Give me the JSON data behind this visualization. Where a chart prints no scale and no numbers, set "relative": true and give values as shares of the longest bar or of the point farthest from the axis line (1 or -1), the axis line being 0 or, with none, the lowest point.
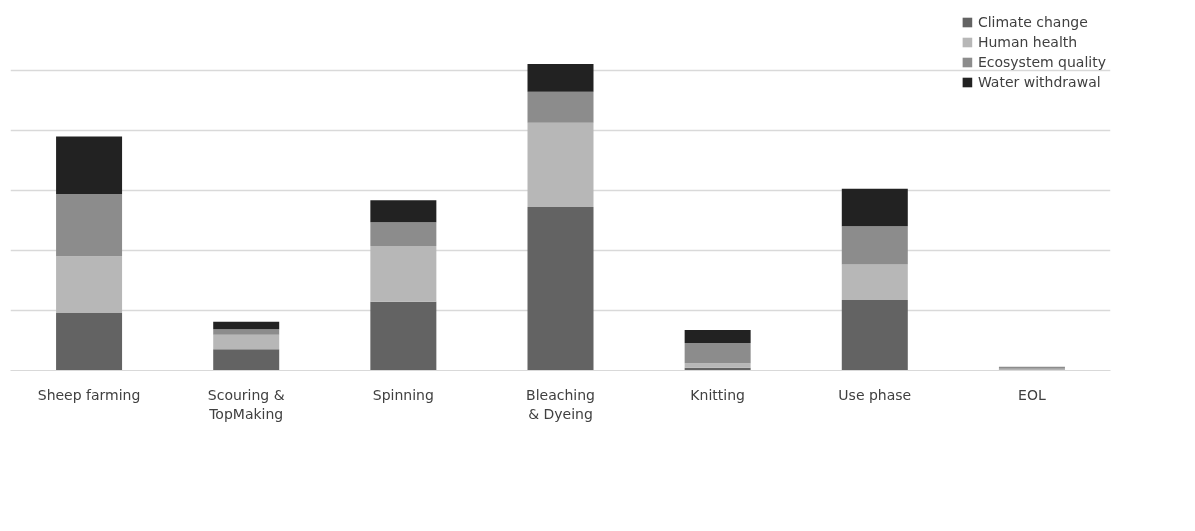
{
  "chart_data": {
    "type": "bar",
    "stacked": true,
    "relative": true,
    "grid": "y",
    "legend": "top right",
    "categories": [
      "Sheep farming",
      "Scouring & TopMaking",
      "Spinning",
      "Bleaching & Dyeing",
      "Knitting",
      "Use phase",
      "EOL"
    ],
    "series": [
      {
        "name": "Climate change",
        "color": "#636363",
        "values": [
          0.188,
          0.069,
          0.224,
          0.534,
          0.009,
          0.23,
          0.003
        ]
      },
      {
        "name": "Human health",
        "color": "#b7b7b7",
        "values": [
          0.185,
          0.048,
          0.182,
          0.275,
          0.015,
          0.116,
          0.003
        ]
      },
      {
        "name": "Ecosystem quality",
        "color": "#8c8c8c",
        "values": [
          0.203,
          0.018,
          0.078,
          0.101,
          0.066,
          0.125,
          0.006
        ]
      },
      {
        "name": "Water withdrawal",
        "color": "#222222",
        "values": [
          0.188,
          0.024,
          0.072,
          0.09,
          0.042,
          0.122,
          0.0
        ]
      }
    ]
  }
}
